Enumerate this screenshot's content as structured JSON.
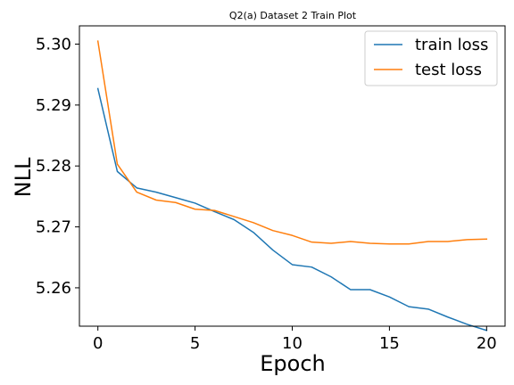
{
  "chart_data": {
    "type": "line",
    "title": "Q2(a) Dataset 2 Train Plot",
    "xlabel": "Epoch",
    "ylabel": "NLL",
    "xlim": [
      -0.95,
      20.95
    ],
    "ylim": [
      5.2537,
      5.303
    ],
    "xticks": [
      0,
      5,
      10,
      15,
      20
    ],
    "xtick_labels": [
      "0",
      "5",
      "10",
      "15",
      "20"
    ],
    "yticks": [
      5.26,
      5.27,
      5.28,
      5.29,
      5.3
    ],
    "ytick_labels": [
      "5.26",
      "5.27",
      "5.28",
      "5.29",
      "5.30"
    ],
    "grid": false,
    "legend": "top-right",
    "series": [
      {
        "name": "train loss",
        "color": "#1f77b4",
        "x": [
          0,
          1,
          2,
          3,
          4,
          5,
          6,
          7,
          8,
          9,
          10,
          11,
          12,
          13,
          14,
          15,
          16,
          17,
          18,
          19,
          20
        ],
        "values": [
          5.2927,
          5.2791,
          5.2764,
          5.2757,
          5.2748,
          5.2739,
          5.2725,
          5.2712,
          5.2691,
          5.2662,
          5.2638,
          5.2634,
          5.2618,
          5.2597,
          5.2597,
          5.2585,
          5.2569,
          5.2565,
          5.2552,
          5.254,
          5.253
        ]
      },
      {
        "name": "test loss",
        "color": "#ff7f0e",
        "x": [
          0,
          1,
          2,
          3,
          4,
          5,
          6,
          7,
          8,
          9,
          10,
          11,
          12,
          13,
          14,
          15,
          16,
          17,
          18,
          19,
          20
        ],
        "values": [
          5.3005,
          5.2803,
          5.2757,
          5.2744,
          5.274,
          5.2729,
          5.2727,
          5.2717,
          5.2707,
          5.2694,
          5.2686,
          5.2675,
          5.2673,
          5.2676,
          5.2673,
          5.2672,
          5.2672,
          5.2676,
          5.2676,
          5.2679,
          5.268
        ]
      }
    ]
  }
}
